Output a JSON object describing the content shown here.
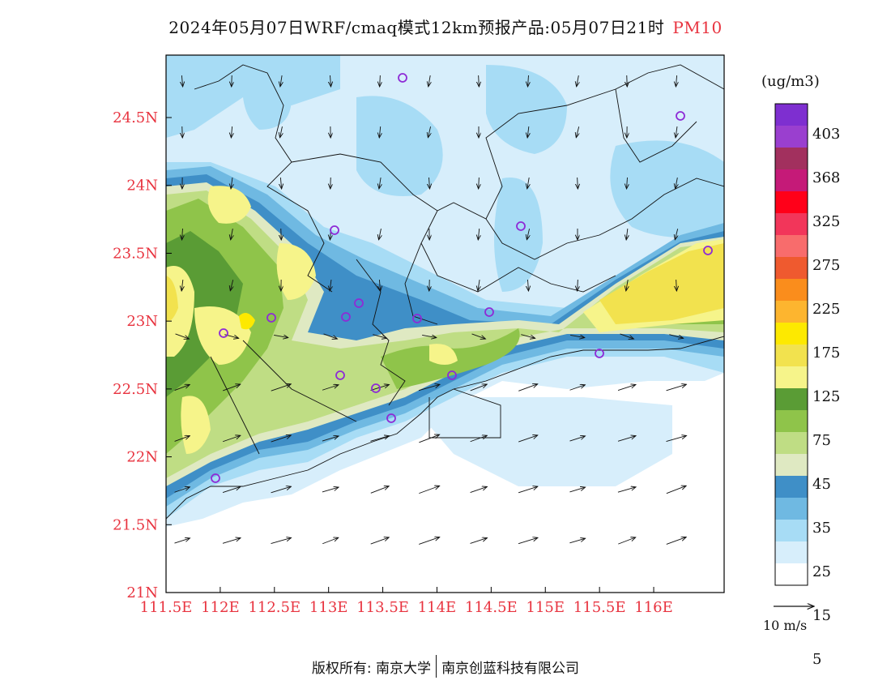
{
  "title": {
    "main": "2024年05月07日WRF/cmaq模式12km预报产品:05月07日21时",
    "pollutant": "PM10"
  },
  "map": {
    "lat_ticks": [
      "24.5N",
      "24N",
      "23.5N",
      "23N",
      "22.5N",
      "22N",
      "21.5N",
      "21N"
    ],
    "lat_values": [
      24.5,
      24,
      23.5,
      23,
      22.5,
      22,
      21.5,
      21
    ],
    "lon_ticks": [
      "111.5E",
      "112E",
      "112.5E",
      "113E",
      "113.5E",
      "114E",
      "114.5E",
      "115E",
      "115.5E",
      "116E"
    ],
    "lon_values": [
      111.5,
      112,
      112.5,
      113,
      113.5,
      114,
      114.5,
      115,
      115.5,
      116
    ],
    "axis_color": "#e8333f"
  },
  "colorbar": {
    "unit": "(ug/m3)",
    "levels": [
      "403",
      "368",
      "325",
      "275",
      "225",
      "175",
      "125",
      "75",
      "45",
      "35",
      "25",
      "15",
      "5"
    ],
    "colors": [
      "#ffffff",
      "#d7eefb",
      "#a7dcf5",
      "#6fb9e2",
      "#3f8fc7",
      "#dfe9c2",
      "#bfdd84",
      "#8fc44a",
      "#5a9c35",
      "#f6f48a",
      "#f2e24e",
      "#fde900",
      "#fdb52f",
      "#fa8d1c",
      "#ef5a2f",
      "#f86c6c",
      "#f2365a",
      "#ff0019",
      "#c51a78",
      "#a2305e",
      "#9a3fcf",
      "#7e2fd0"
    ]
  },
  "wind": {
    "reference_label": "10 m/s"
  },
  "footer": {
    "left": "版权所有: 南京大学",
    "right": "南京创蓝科技有限公司"
  }
}
